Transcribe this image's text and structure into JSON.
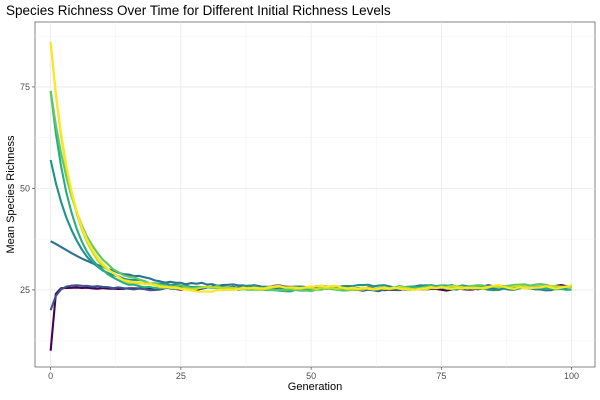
{
  "chart_data": {
    "type": "line",
    "title": "Species Richness Over Time for Different Initial Richness Levels",
    "xlabel": "Generation",
    "ylabel": "Mean Species Richness",
    "xlim": [
      -3,
      104.5
    ],
    "ylim": [
      6,
      91
    ],
    "xticks": [
      0,
      25,
      50,
      75,
      100
    ],
    "yticks": [
      25,
      50,
      75
    ],
    "grid": true,
    "legend": "none",
    "series": [
      {
        "color": "#440154",
        "start": 10,
        "a": 4.2,
        "b": 2,
        "smoothing": 0.84,
        "seed": 11
      },
      {
        "color": "#3b528b",
        "start": 20,
        "a": 2.2,
        "b": 0.5,
        "smoothing": 0.83,
        "seed": 23
      },
      {
        "color": "#2c728e",
        "start": 37,
        "a": 0.8,
        "b": 0.13,
        "smoothing": 0.82,
        "seed": 37
      },
      {
        "color": "#21918c",
        "start": 57,
        "a": 0,
        "b": 0.2,
        "smoothing": 0.81,
        "seed": 41
      },
      {
        "color": "#27ad81",
        "start": 74,
        "a": 0,
        "b": 0.24,
        "smoothing": 0.8,
        "seed": 53
      },
      {
        "color": "#5ec962",
        "start": 74,
        "a": 0,
        "b": 0.19,
        "smoothing": 0.8,
        "seed": 67
      },
      {
        "color": "#bddf26",
        "start": 86,
        "a": 0,
        "b": 0.24,
        "smoothing": 0.79,
        "seed": 79
      },
      {
        "color": "#fde725",
        "start": 86,
        "a": 0,
        "b": 0.23,
        "smoothing": 0.79,
        "seed": 97
      }
    ],
    "equilibrium": 25.6,
    "generations": 100
  }
}
